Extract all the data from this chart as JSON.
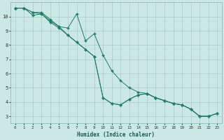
{
  "xlabel": "Humidex (Indice chaleur)",
  "xlim": [
    -0.5,
    23.5
  ],
  "ylim": [
    2.5,
    11.0
  ],
  "xticks": [
    0,
    1,
    2,
    3,
    4,
    5,
    6,
    7,
    8,
    9,
    10,
    11,
    12,
    13,
    14,
    15,
    16,
    17,
    18,
    19,
    20,
    21,
    22,
    23
  ],
  "yticks": [
    3,
    4,
    5,
    6,
    7,
    8,
    9,
    10
  ],
  "bg_color": "#cce8e4",
  "grid_color": "#aaccc8",
  "line_color": "#1a7a6e",
  "line1_x": [
    0,
    1,
    2,
    3,
    4,
    5,
    6,
    7,
    8,
    9,
    10,
    11,
    12,
    13,
    14,
    15,
    16,
    17,
    18,
    19,
    20,
    21,
    22,
    23
  ],
  "line1_y": [
    10.6,
    10.6,
    10.3,
    10.2,
    9.7,
    9.3,
    8.7,
    8.2,
    7.7,
    7.2,
    4.3,
    3.9,
    3.8,
    4.2,
    4.5,
    4.6,
    4.3,
    4.1,
    3.9,
    3.8,
    3.5,
    3.0,
    3.0,
    3.2
  ],
  "line2_x": [
    0,
    1,
    2,
    3,
    4,
    5,
    6,
    7,
    8,
    9,
    10,
    11,
    12,
    13,
    14,
    15,
    16,
    17,
    18,
    19,
    20,
    21,
    22,
    23
  ],
  "line2_y": [
    10.6,
    10.6,
    10.3,
    10.3,
    9.8,
    9.3,
    9.2,
    10.2,
    8.3,
    8.8,
    7.3,
    6.2,
    5.5,
    5.0,
    4.7,
    4.6,
    4.3,
    4.1,
    3.9,
    3.8,
    3.5,
    3.0,
    3.0,
    3.2
  ],
  "line3_x": [
    0,
    1,
    2,
    3,
    4,
    5,
    6,
    7,
    8,
    9,
    10,
    11,
    12,
    13,
    14,
    15,
    16,
    17,
    18,
    19,
    20,
    21,
    22,
    23
  ],
  "line3_y": [
    10.6,
    10.6,
    10.1,
    10.2,
    9.6,
    9.2,
    8.7,
    8.2,
    7.7,
    7.2,
    4.3,
    3.9,
    3.8,
    4.2,
    4.5,
    4.6,
    4.3,
    4.1,
    3.9,
    3.8,
    3.5,
    3.0,
    3.0,
    3.2
  ]
}
